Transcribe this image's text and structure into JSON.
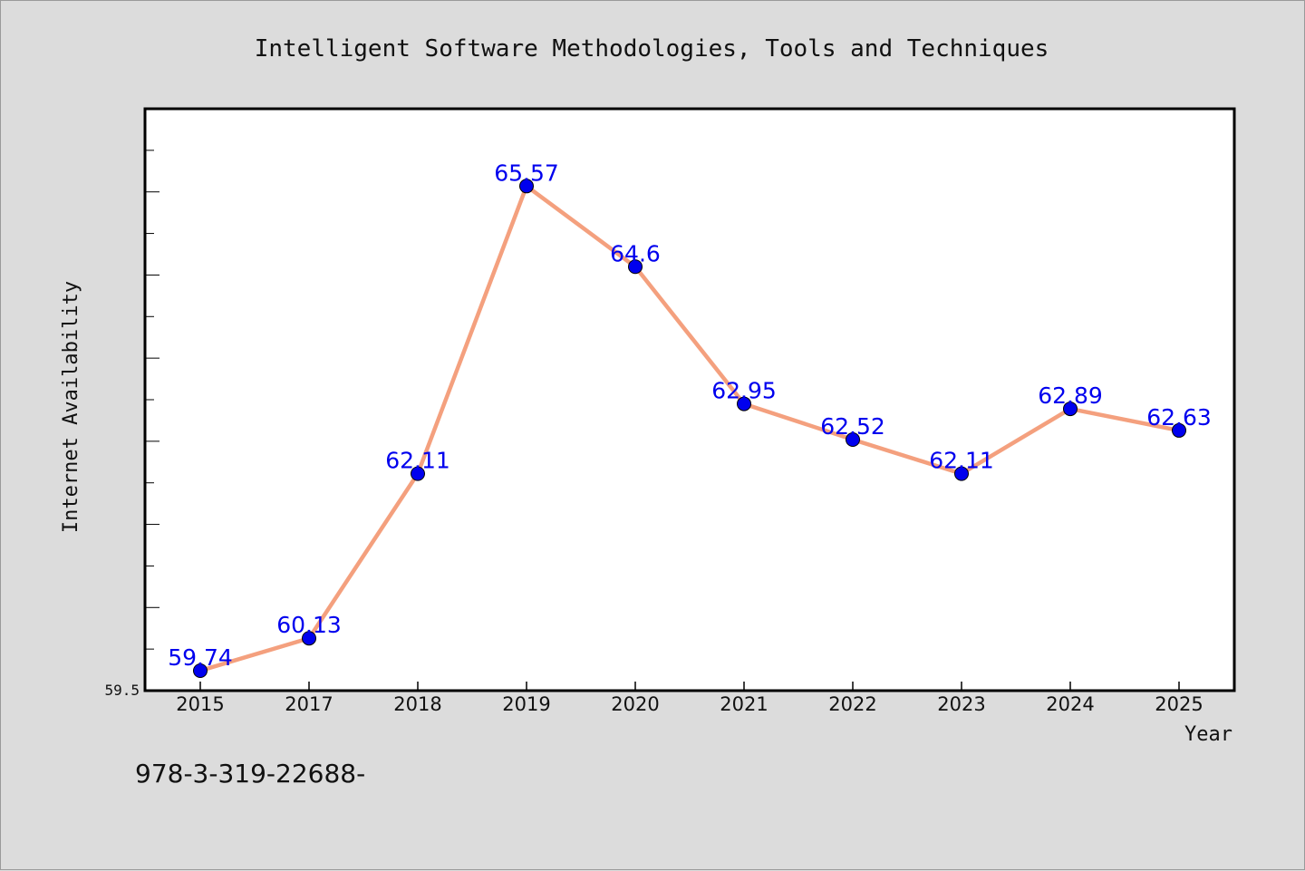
{
  "chart_data": {
    "type": "line",
    "title": "Intelligent Software Methodologies, Tools and Techniques",
    "xlabel": "Year",
    "ylabel": "Internet Availability",
    "categories": [
      "2015",
      "2017",
      "2018",
      "2019",
      "2020",
      "2021",
      "2022",
      "2023",
      "2024",
      "2025"
    ],
    "series": [
      {
        "values": [
          59.74,
          60.13,
          62.11,
          65.57,
          64.6,
          62.95,
          62.52,
          62.11,
          62.89,
          62.63
        ],
        "labels": [
          "59.74",
          "60.13",
          "62.11",
          "65.57",
          "64.6",
          "62.95",
          "62.52",
          "62.11",
          "62.89",
          "62.63"
        ]
      }
    ],
    "ylim": [
      59.5,
      66.5
    ],
    "y_tick_label": "59.5",
    "grid": false,
    "line_color": "#f4a07e",
    "marker_color": "#0000ee",
    "label_color": "#0000ee"
  },
  "footer_text": "978-3-319-22688-"
}
